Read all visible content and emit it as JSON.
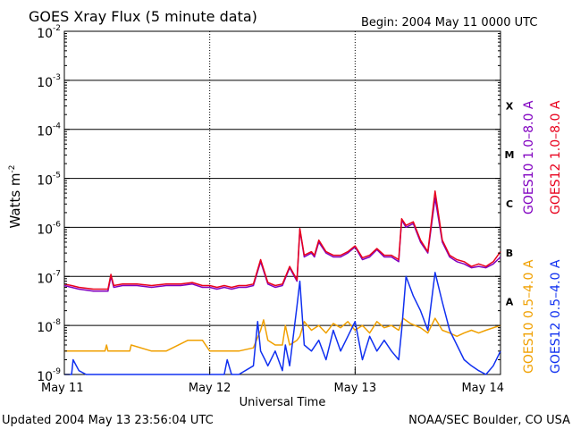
{
  "chart_data": {
    "type": "line",
    "title": "GOES Xray Flux (5 minute data)",
    "begin_text": "Begin:  2004 May 11 0000 UTC",
    "xlabel": "Universal Time",
    "ylabel": "Watts m",
    "ylabel_sup": "-2",
    "y_scale": "log",
    "ylim": [
      1e-09,
      0.01
    ],
    "xlim_days": [
      0,
      3
    ],
    "x_ticks": [
      {
        "day": 0,
        "label": "May 11"
      },
      {
        "day": 1,
        "label": "May 12"
      },
      {
        "day": 2,
        "label": "May 13"
      },
      {
        "day": 3,
        "label": "May 14"
      }
    ],
    "y_ticks": [
      {
        "exp": -9,
        "base": "10",
        "sup": "-9"
      },
      {
        "exp": -8,
        "base": "10",
        "sup": "-8"
      },
      {
        "exp": -7,
        "base": "10",
        "sup": "-7"
      },
      {
        "exp": -6,
        "base": "10",
        "sup": "-6"
      },
      {
        "exp": -5,
        "base": "10",
        "sup": "-5"
      },
      {
        "exp": -4,
        "base": "10",
        "sup": "-4"
      },
      {
        "exp": -3,
        "base": "10",
        "sup": "-3"
      },
      {
        "exp": -2,
        "base": "10",
        "sup": "-2"
      }
    ],
    "flare_classes": [
      {
        "label": "A",
        "exp": -7.5
      },
      {
        "label": "B",
        "exp": -6.5
      },
      {
        "label": "C",
        "exp": -5.5
      },
      {
        "label": "M",
        "exp": -4.5
      },
      {
        "label": "X",
        "exp": -3.5
      }
    ],
    "grid_exps": [
      -8,
      -7,
      -6,
      -5,
      -4,
      -3
    ],
    "series": [
      {
        "name": "GOES10 1.0–8.0 A",
        "color": "#8000c0",
        "days": [
          0,
          0.05,
          0.1,
          0.2,
          0.3,
          0.32,
          0.34,
          0.4,
          0.5,
          0.6,
          0.7,
          0.8,
          0.88,
          0.95,
          1.0,
          1.05,
          1.1,
          1.15,
          1.2,
          1.25,
          1.3,
          1.35,
          1.4,
          1.45,
          1.5,
          1.55,
          1.6,
          1.62,
          1.65,
          1.7,
          1.72,
          1.75,
          1.8,
          1.85,
          1.9,
          1.95,
          2.0,
          2.05,
          2.1,
          2.15,
          2.2,
          2.25,
          2.3,
          2.32,
          2.35,
          2.4,
          2.45,
          2.5,
          2.55,
          2.6,
          2.65,
          2.7,
          2.75,
          2.8,
          2.85,
          2.9,
          2.95,
          3.0
        ],
        "values": [
          6.5e-08,
          6e-08,
          5.5e-08,
          5e-08,
          5e-08,
          1e-07,
          6e-08,
          6.5e-08,
          6.5e-08,
          6e-08,
          6.5e-08,
          6.5e-08,
          7e-08,
          6e-08,
          6e-08,
          5.5e-08,
          6e-08,
          5.5e-08,
          6e-08,
          6e-08,
          6.5e-08,
          2e-07,
          7e-08,
          6e-08,
          6.5e-08,
          1.5e-07,
          8e-08,
          9e-07,
          2.5e-07,
          3e-07,
          2.5e-07,
          5e-07,
          3e-07,
          2.5e-07,
          2.5e-07,
          3e-07,
          4e-07,
          2.2e-07,
          2.5e-07,
          3.5e-07,
          2.5e-07,
          2.5e-07,
          2e-07,
          1.4e-06,
          1e-06,
          1.2e-06,
          5e-07,
          3e-07,
          4e-06,
          5e-07,
          2.5e-07,
          2e-07,
          1.8e-07,
          1.5e-07,
          1.6e-07,
          1.5e-07,
          1.8e-07,
          2.5e-07
        ]
      },
      {
        "name": "GOES12 1.0–8.0 A",
        "color": "#e8001c",
        "days": [
          0,
          0.05,
          0.1,
          0.2,
          0.3,
          0.32,
          0.34,
          0.4,
          0.5,
          0.6,
          0.7,
          0.8,
          0.88,
          0.95,
          1.0,
          1.05,
          1.1,
          1.15,
          1.2,
          1.25,
          1.3,
          1.35,
          1.4,
          1.45,
          1.5,
          1.55,
          1.6,
          1.62,
          1.65,
          1.7,
          1.72,
          1.75,
          1.8,
          1.85,
          1.9,
          1.95,
          2.0,
          2.05,
          2.1,
          2.15,
          2.2,
          2.25,
          2.3,
          2.32,
          2.35,
          2.4,
          2.45,
          2.5,
          2.55,
          2.6,
          2.65,
          2.7,
          2.75,
          2.8,
          2.85,
          2.9,
          2.95,
          3.0
        ],
        "values": [
          7e-08,
          6.5e-08,
          6e-08,
          5.5e-08,
          5.5e-08,
          1.1e-07,
          6.5e-08,
          7e-08,
          7e-08,
          6.5e-08,
          7e-08,
          7e-08,
          7.5e-08,
          6.5e-08,
          6.5e-08,
          6e-08,
          6.5e-08,
          6e-08,
          6.5e-08,
          6.5e-08,
          7e-08,
          2.2e-07,
          7.5e-08,
          6.5e-08,
          7e-08,
          1.6e-07,
          8.5e-08,
          9.5e-07,
          2.7e-07,
          3.2e-07,
          2.7e-07,
          5.5e-07,
          3.2e-07,
          2.7e-07,
          2.7e-07,
          3.2e-07,
          4.2e-07,
          2.4e-07,
          2.7e-07,
          3.7e-07,
          2.7e-07,
          2.7e-07,
          2.2e-07,
          1.5e-06,
          1.1e-06,
          1.3e-06,
          5.5e-07,
          3.2e-07,
          5.5e-06,
          5.5e-07,
          2.7e-07,
          2.2e-07,
          2e-07,
          1.6e-07,
          1.8e-07,
          1.6e-07,
          2e-07,
          3.2e-07
        ]
      },
      {
        "name": "GOES10 0.5–4.0 A",
        "color": "#f0a000",
        "days": [
          0,
          0.28,
          0.29,
          0.3,
          0.4,
          0.45,
          0.46,
          0.6,
          0.7,
          0.85,
          0.95,
          1.0,
          1.05,
          1.1,
          1.2,
          1.3,
          1.35,
          1.37,
          1.4,
          1.45,
          1.5,
          1.52,
          1.55,
          1.6,
          1.62,
          1.65,
          1.7,
          1.75,
          1.8,
          1.85,
          1.9,
          1.95,
          2.0,
          2.05,
          2.1,
          2.15,
          2.2,
          2.25,
          2.3,
          2.33,
          2.38,
          2.45,
          2.5,
          2.55,
          2.6,
          2.65,
          2.7,
          2.75,
          2.8,
          2.85,
          2.9,
          3.0
        ],
        "values": [
          3e-09,
          3e-09,
          4e-09,
          3e-09,
          3e-09,
          3e-09,
          4e-09,
          3e-09,
          3e-09,
          5e-09,
          5e-09,
          3e-09,
          3e-09,
          3e-09,
          3e-09,
          3.5e-09,
          8e-09,
          1.3e-08,
          5e-09,
          4e-09,
          4e-09,
          1e-08,
          4e-09,
          5e-09,
          6e-09,
          1.2e-08,
          8e-09,
          1e-08,
          7e-09,
          1.1e-08,
          9e-09,
          1.2e-08,
          8e-09,
          1e-08,
          7e-09,
          1.2e-08,
          9e-09,
          1e-08,
          8e-09,
          1.4e-08,
          1.1e-08,
          9e-09,
          7e-09,
          1.4e-08,
          8e-09,
          7e-09,
          6e-09,
          7e-09,
          8e-09,
          7e-09,
          8e-09,
          1e-08
        ]
      },
      {
        "name": "GOES12 0.5–4.0 A",
        "color": "#1030f0",
        "days": [
          0,
          0.05,
          0.06,
          0.1,
          0.15,
          0.2,
          0.3,
          0.5,
          0.8,
          1.0,
          1.1,
          1.12,
          1.15,
          1.2,
          1.3,
          1.33,
          1.35,
          1.38,
          1.4,
          1.45,
          1.5,
          1.52,
          1.55,
          1.6,
          1.62,
          1.65,
          1.7,
          1.75,
          1.8,
          1.85,
          1.9,
          1.95,
          2.0,
          2.05,
          2.1,
          2.15,
          2.2,
          2.25,
          2.3,
          2.32,
          2.35,
          2.4,
          2.45,
          2.5,
          2.55,
          2.6,
          2.65,
          2.7,
          2.75,
          2.8,
          2.85,
          2.9,
          2.95,
          3.0
        ],
        "values": [
          1e-09,
          1e-09,
          2e-09,
          1.2e-09,
          1e-09,
          1e-09,
          1e-09,
          1e-09,
          1e-09,
          1e-09,
          1e-09,
          2e-09,
          1e-09,
          1e-09,
          1.5e-09,
          1.2e-08,
          3e-09,
          2e-09,
          1.5e-09,
          3e-09,
          1.2e-09,
          4e-09,
          1.5e-09,
          2.5e-08,
          8e-08,
          4e-09,
          3e-09,
          5e-09,
          2e-09,
          8e-09,
          3e-09,
          6e-09,
          1.2e-08,
          2e-09,
          6e-09,
          3e-09,
          5e-09,
          3e-09,
          2e-09,
          8e-09,
          1e-07,
          4e-08,
          2e-08,
          8e-09,
          1.2e-07,
          3e-08,
          8e-09,
          4e-09,
          2e-09,
          1.5e-09,
          1.2e-09,
          1e-09,
          1.5e-09,
          3e-09
        ]
      }
    ],
    "footer_left": "Updated 2004 May 13 23:56:04 UTC",
    "footer_right": "NOAA/SEC Boulder, CO USA"
  }
}
